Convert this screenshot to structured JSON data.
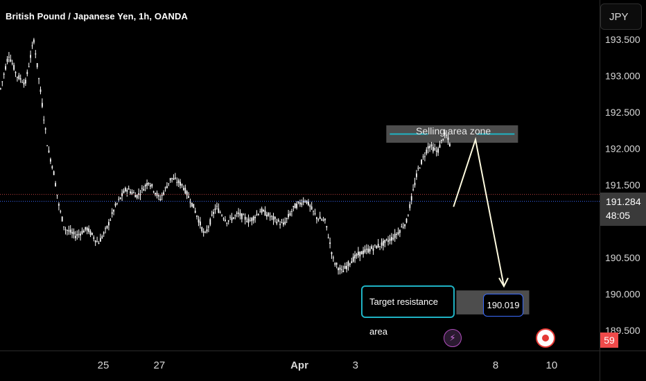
{
  "header": {
    "title": "British Pound / Japanese Yen, 1h, OANDA",
    "currency_button": "JPY"
  },
  "price_scale": {
    "current_price": "191.284",
    "countdown": "48:05",
    "badge_count": "59"
  },
  "annotations": {
    "selling_zone_label": "Selling area zone",
    "target_callout": "Target resistance area",
    "target_value": "190.019"
  },
  "icons": {
    "lightning": "lightning-bolt-icon",
    "record": "record-dot-icon"
  },
  "colors": {
    "background": "#000000",
    "candles": "#ffffff",
    "zone_line": "#1fb3c4",
    "callout_border": "#1fb3c4",
    "target_border": "#3b6cff",
    "badge": "#f04a4a",
    "arrow": "#fffbe0",
    "current_price_line_blue": "#3b6cff",
    "current_price_line_red": "#c04040"
  },
  "chart_data": {
    "type": "line",
    "title": "British Pound / Japanese Yen, 1h, OANDA",
    "xlabel": "",
    "ylabel": "",
    "ylim": [
      189.3,
      193.75
    ],
    "grid": false,
    "y_ticks": [
      "193.500",
      "193.000",
      "192.500",
      "192.000",
      "191.500",
      "191.000",
      "190.500",
      "190.000",
      "189.500"
    ],
    "x_ticks": [
      "25",
      "27",
      "Apr",
      "3",
      "8",
      "10"
    ],
    "x_tick_days": [
      25,
      27,
      32,
      34,
      39,
      41
    ],
    "price_path_days": [
      21.0,
      21.3,
      21.6,
      21.9,
      22.2,
      22.5,
      22.8,
      23.0,
      23.2,
      23.4,
      23.6,
      24.0,
      24.4,
      24.8,
      25.1,
      25.4,
      25.8,
      26.2,
      26.6,
      27.0,
      27.4,
      27.8,
      28.2,
      28.6,
      29.0,
      29.4,
      29.8,
      30.2,
      30.6,
      31.0,
      31.4,
      31.8,
      32.2,
      32.6,
      32.9,
      33.2,
      33.5,
      33.8,
      34.1,
      34.4,
      34.7,
      35.0,
      35.4,
      35.8,
      36.2,
      36.6,
      36.9,
      37.1,
      37.2,
      37.35
    ],
    "price_path_values": [
      192.5,
      192.8,
      193.3,
      193.0,
      192.9,
      193.5,
      192.6,
      192.0,
      191.7,
      191.2,
      190.9,
      190.8,
      190.9,
      190.7,
      190.9,
      191.2,
      191.45,
      191.35,
      191.55,
      191.3,
      191.6,
      191.5,
      191.2,
      190.8,
      191.2,
      191.0,
      191.1,
      191.0,
      191.15,
      191.05,
      190.95,
      191.2,
      191.3,
      191.05,
      191.0,
      190.45,
      190.3,
      190.45,
      190.55,
      190.6,
      190.65,
      190.7,
      190.8,
      191.0,
      191.7,
      192.05,
      191.95,
      192.15,
      192.2,
      192.05
    ],
    "current_price": 191.284,
    "selling_zone": {
      "ymin": 192.08,
      "ymax": 192.32,
      "x_start_day": 35.1,
      "x_end_day": 39.8
    },
    "target_zone": {
      "ymin": 189.72,
      "ymax": 190.05,
      "x_start_day": 37.6,
      "x_end_day": 40.2
    }
  }
}
